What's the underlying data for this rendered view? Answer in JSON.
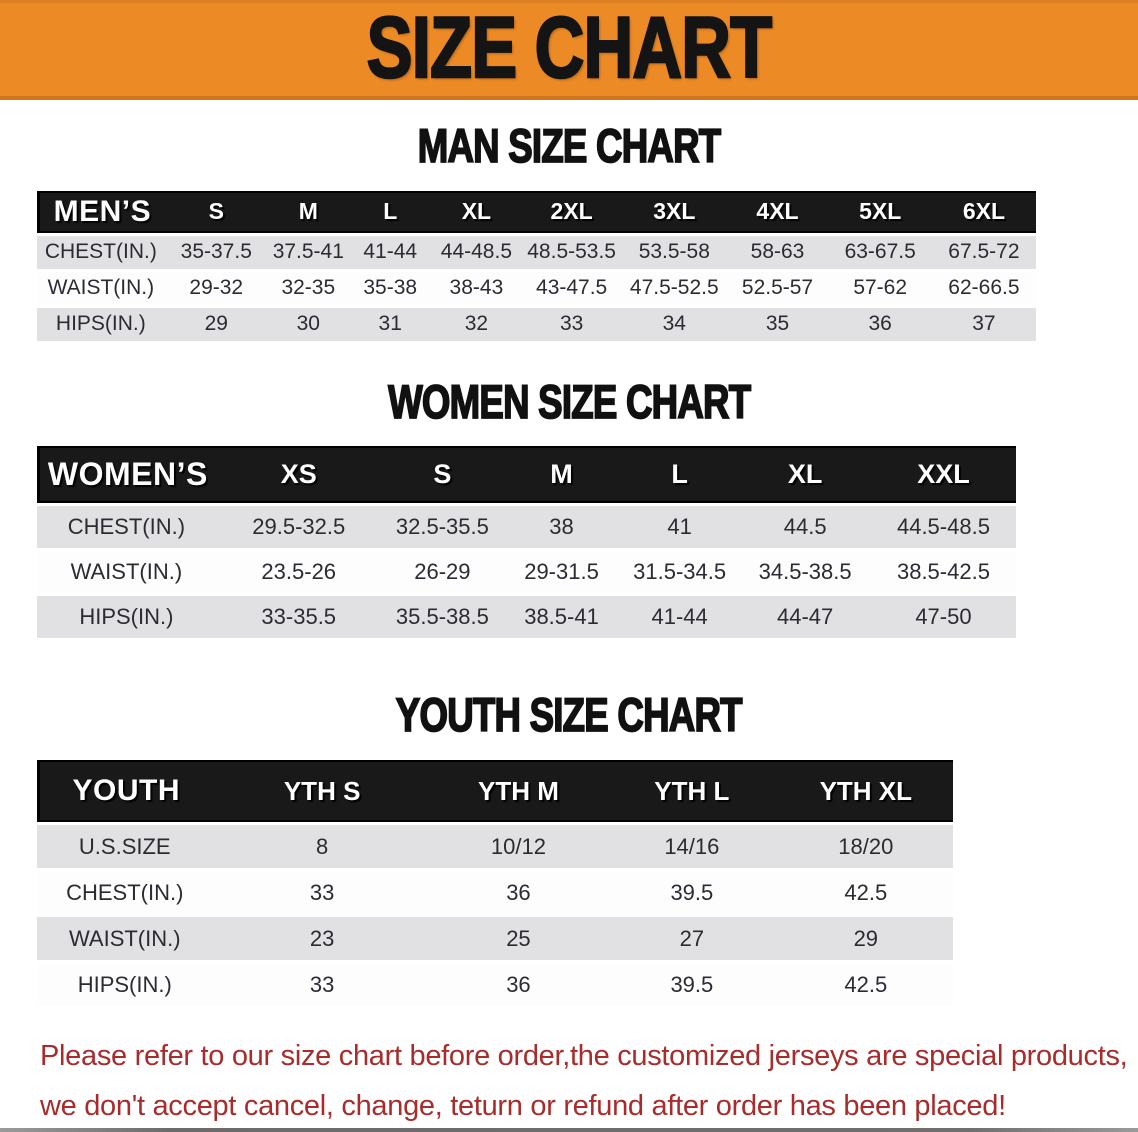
{
  "banner": {
    "title": "SIZE CHART",
    "bg_color": "#EC8A26",
    "text_color": "#141414"
  },
  "sections": [
    {
      "heading": "MAN SIZE CHART",
      "table": {
        "header_label": "MEN’S",
        "columns": [
          "S",
          "M",
          "L",
          "XL",
          "2XL",
          "3XL",
          "4XL",
          "5XL",
          "6XL"
        ],
        "rows": [
          {
            "label": "CHEST(IN.)",
            "values": [
              "35-37.5",
              "37.5-41",
              "41-44",
              "44-48.5",
              "48.5-53.5",
              "53.5-58",
              "58-63",
              "63-67.5",
              "67.5-72"
            ]
          },
          {
            "label": "WAIST(IN.)",
            "values": [
              "29-32",
              "32-35",
              "35-38",
              "38-43",
              "43-47.5",
              "47.5-52.5",
              "52.5-57",
              "57-62",
              "62-66.5"
            ]
          },
          {
            "label": "HIPS(IN.)",
            "values": [
              "29",
              "30",
              "31",
              "32",
              "33",
              "34",
              "35",
              "36",
              "37"
            ]
          }
        ]
      }
    },
    {
      "heading": "WOMEN SIZE CHART",
      "table": {
        "header_label": "WOMEN’S",
        "columns": [
          "XS",
          "S",
          "M",
          "L",
          "XL",
          "XXL"
        ],
        "rows": [
          {
            "label": "CHEST(IN.)",
            "values": [
              "29.5-32.5",
              "32.5-35.5",
              "38",
              "41",
              "44.5",
              "44.5-48.5"
            ]
          },
          {
            "label": "WAIST(IN.)",
            "values": [
              "23.5-26",
              "26-29",
              "29-31.5",
              "31.5-34.5",
              "34.5-38.5",
              "38.5-42.5"
            ]
          },
          {
            "label": "HIPS(IN.)",
            "values": [
              "33-35.5",
              "35.5-38.5",
              "38.5-41",
              "41-44",
              "44-47",
              "47-50"
            ]
          }
        ]
      }
    },
    {
      "heading": "YOUTH SIZE CHART",
      "table": {
        "header_label": "YOUTH",
        "columns": [
          "YTH S",
          "YTH M",
          "YTH L",
          "YTH XL"
        ],
        "rows": [
          {
            "label": "U.S.SIZE",
            "values": [
              "8",
              "10/12",
              "14/16",
              "18/20"
            ]
          },
          {
            "label": "CHEST(IN.)",
            "values": [
              "33",
              "36",
              "39.5",
              "42.5"
            ]
          },
          {
            "label": "WAIST(IN.)",
            "values": [
              "23",
              "25",
              "27",
              "29"
            ]
          },
          {
            "label": "HIPS(IN.)",
            "values": [
              "33",
              "36",
              "39.5",
              "42.5"
            ]
          }
        ]
      }
    }
  ],
  "disclaimer": {
    "line1": "Please refer to our size chart before order,the customized jerseys are special products,",
    "line2": "we don't accept cancel, change, teturn or refund after order has been placed!",
    "color": "#A82C2B"
  },
  "colors": {
    "table_header_bg": "#191919",
    "table_header_text": "#FFFFFF",
    "row_gray": "#E1E1E3",
    "row_white": "#FDFDFE",
    "body_text": "#2B2B33"
  }
}
